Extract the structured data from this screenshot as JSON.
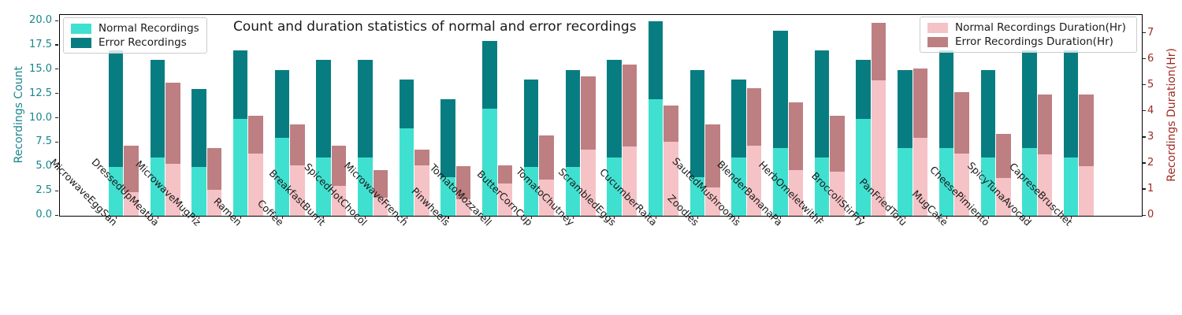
{
  "title": "Count and duration statistics of normal and error recordings",
  "colors": {
    "normal_count": "#40E0D0",
    "error_count": "#077D81",
    "normal_duration": "#F5C2C6",
    "error_duration": "#BD7F81",
    "left_axis_text": "#1A858C",
    "right_axis_text": "#9E2B25",
    "spine": "#000000"
  },
  "left_axis": {
    "label": "Recordings Count",
    "tick_labels": [
      "0.0",
      "2.5",
      "5.0",
      "7.5",
      "10.0",
      "12.5",
      "15.0",
      "17.5",
      "20.0"
    ],
    "tick_values": [
      0,
      2.5,
      5,
      7.5,
      10,
      12.5,
      15,
      17.5,
      20
    ]
  },
  "right_axis": {
    "label": "Recordings Duration(Hr)",
    "tick_labels": [
      "0",
      "1",
      "2",
      "3",
      "4",
      "5",
      "6",
      "7"
    ],
    "tick_values": [
      0,
      1,
      2,
      3,
      4,
      5,
      6,
      7
    ]
  },
  "legend_counts": {
    "items": [
      {
        "label": "Normal Recordings",
        "color": "normal_count"
      },
      {
        "label": "Error Recordings",
        "color": "error_count"
      }
    ]
  },
  "legend_durations": {
    "items": [
      {
        "label": "Normal Recordings Duration(Hr)",
        "color": "normal_duration"
      },
      {
        "label": "Error Recordings Duration(Hr)",
        "color": "error_duration"
      }
    ]
  },
  "chart_data": {
    "type": "bar",
    "subtype": "grouped-stacked",
    "title": "Count and duration statistics of normal and error recordings",
    "ylabel_left": "Recordings Count",
    "ylabel_right": "Recordings Duration(Hr)",
    "ylim_left": [
      0,
      20.65
    ],
    "ylim_right": [
      0,
      7.71
    ],
    "grid": false,
    "legend_positions": [
      "upper left",
      "upper right"
    ],
    "categories": [
      "MicrowaveEggSan",
      "DressedUpMeatba",
      "MicrowaveMugPiz",
      "Ramen",
      "Coffee",
      "BreakfastBurrit",
      "SpicedHotChocol",
      "MicrowaveFrench",
      "Pinwheels",
      "TomatoMozzarell",
      "ButterCornCup",
      "TomatoChutney",
      "ScrambledEggs",
      "CucumberRaita",
      "Zoodles",
      "SautedMushrooms",
      "BlenderBananaPa",
      "HerbOmeletwithF",
      "BroccoliStirFry",
      "PanFriedTofu",
      "MugCake",
      "CheesePimiento",
      "SpicyTunaAvocad",
      "CapreseBruschet"
    ],
    "series": [
      {
        "name": "Normal Recordings",
        "axis": "count",
        "stack": "count",
        "values": [
          5,
          6,
          5,
          10,
          8,
          6,
          6,
          9,
          4,
          11,
          5,
          5,
          6,
          12,
          4,
          6,
          7,
          6,
          10,
          7,
          7,
          6,
          7,
          6
        ]
      },
      {
        "name": "Error Recordings",
        "axis": "count",
        "stack": "count",
        "values": [
          12,
          10,
          8,
          7,
          7,
          10,
          10,
          5,
          8,
          7,
          9,
          10,
          10,
          8,
          11,
          8,
          12,
          11,
          6,
          8,
          10,
          9,
          10,
          11
        ]
      },
      {
        "name": "Normal Recordings Duration(Hr)",
        "axis": "duration",
        "stack": "duration",
        "values": [
          0.9,
          2.0,
          1.0,
          2.4,
          1.95,
          1.15,
          0.7,
          1.95,
          0.65,
          1.25,
          1.4,
          2.55,
          2.65,
          2.85,
          1.1,
          2.7,
          1.75,
          1.7,
          5.2,
          3.0,
          2.4,
          1.45,
          2.35,
          1.9
        ]
      },
      {
        "name": "Error Recordings Duration(Hr)",
        "axis": "duration",
        "stack": "duration",
        "values": [
          1.8,
          3.1,
          1.6,
          1.45,
          1.55,
          1.55,
          1.05,
          0.6,
          1.25,
          0.7,
          1.7,
          2.8,
          3.15,
          1.4,
          2.4,
          2.2,
          2.6,
          2.15,
          2.2,
          2.65,
          2.35,
          1.7,
          2.3,
          2.75
        ]
      }
    ]
  }
}
